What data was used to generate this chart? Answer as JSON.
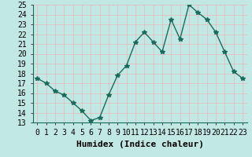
{
  "xlabel": "Humidex (Indice chaleur)",
  "x": [
    0,
    1,
    2,
    3,
    4,
    5,
    6,
    7,
    8,
    9,
    10,
    11,
    12,
    13,
    14,
    15,
    16,
    17,
    18,
    19,
    20,
    21,
    22,
    23
  ],
  "y": [
    17.5,
    17.0,
    16.2,
    15.8,
    15.0,
    14.2,
    13.2,
    13.5,
    15.8,
    17.8,
    18.8,
    21.2,
    22.2,
    21.2,
    20.2,
    23.5,
    21.5,
    25.0,
    24.2,
    23.5,
    22.2,
    20.2,
    18.2,
    17.5
  ],
  "line_color": "#1a6b5c",
  "marker": "*",
  "bg_color": "#c2e8e4",
  "grid_color": "#e8b8b8",
  "ylim": [
    13,
    25
  ],
  "xlim": [
    -0.5,
    23.5
  ],
  "yticks": [
    13,
    14,
    15,
    16,
    17,
    18,
    19,
    20,
    21,
    22,
    23,
    24,
    25
  ],
  "xticks": [
    0,
    1,
    2,
    3,
    4,
    5,
    6,
    7,
    8,
    9,
    10,
    11,
    12,
    13,
    14,
    15,
    16,
    17,
    18,
    19,
    20,
    21,
    22,
    23
  ],
  "tick_fontsize": 7,
  "xlabel_fontsize": 8,
  "line_width": 1.0,
  "marker_size": 4
}
